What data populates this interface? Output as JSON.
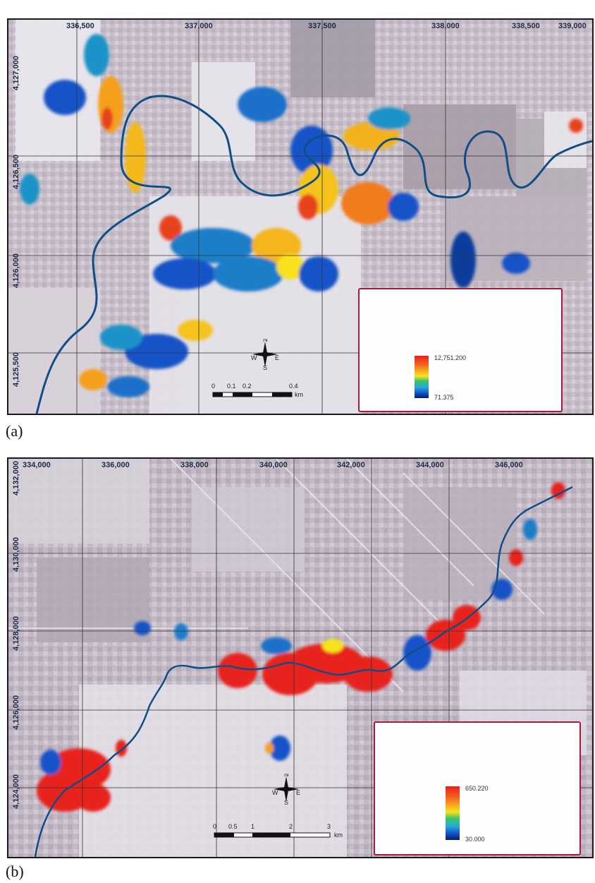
{
  "panel_a": {
    "label": "(a)",
    "x_ticks": [
      "336,500",
      "337,000",
      "337,500",
      "338,000",
      "338,500",
      "339,000"
    ],
    "y_ticks": [
      "4,127,000",
      "4,126,500",
      "4,126,000",
      "4,125,500"
    ],
    "legend": {
      "high": "12,751.200",
      "low": "71.375"
    },
    "scale": {
      "labels": [
        "0",
        "0.1",
        "0.2",
        "0.4"
      ],
      "unit": "km"
    },
    "compass": {
      "n": "N",
      "s": "S",
      "e": "E",
      "w": "W"
    }
  },
  "panel_b": {
    "label": "(b)",
    "x_ticks": [
      "334,000",
      "336,000",
      "338,000",
      "340,000",
      "342,000",
      "344,000",
      "346,000"
    ],
    "y_ticks": [
      "4,132,000",
      "4,130,000",
      "4,128,000",
      "4,126,000",
      "4,124,000"
    ],
    "legend": {
      "high": "650.220",
      "low": "30.000"
    },
    "scale": {
      "labels": [
        "0",
        "0.5",
        "1",
        "2",
        "3"
      ],
      "unit": "km"
    },
    "compass": {
      "n": "N",
      "s": "S",
      "e": "E",
      "w": "W"
    }
  },
  "colors": {
    "river": "#0f4f86",
    "frame": "#1a1a1a",
    "legend_border": "#a51c3a",
    "ramp_high": "#e8231f",
    "ramp_low": "#0a1a6e"
  }
}
